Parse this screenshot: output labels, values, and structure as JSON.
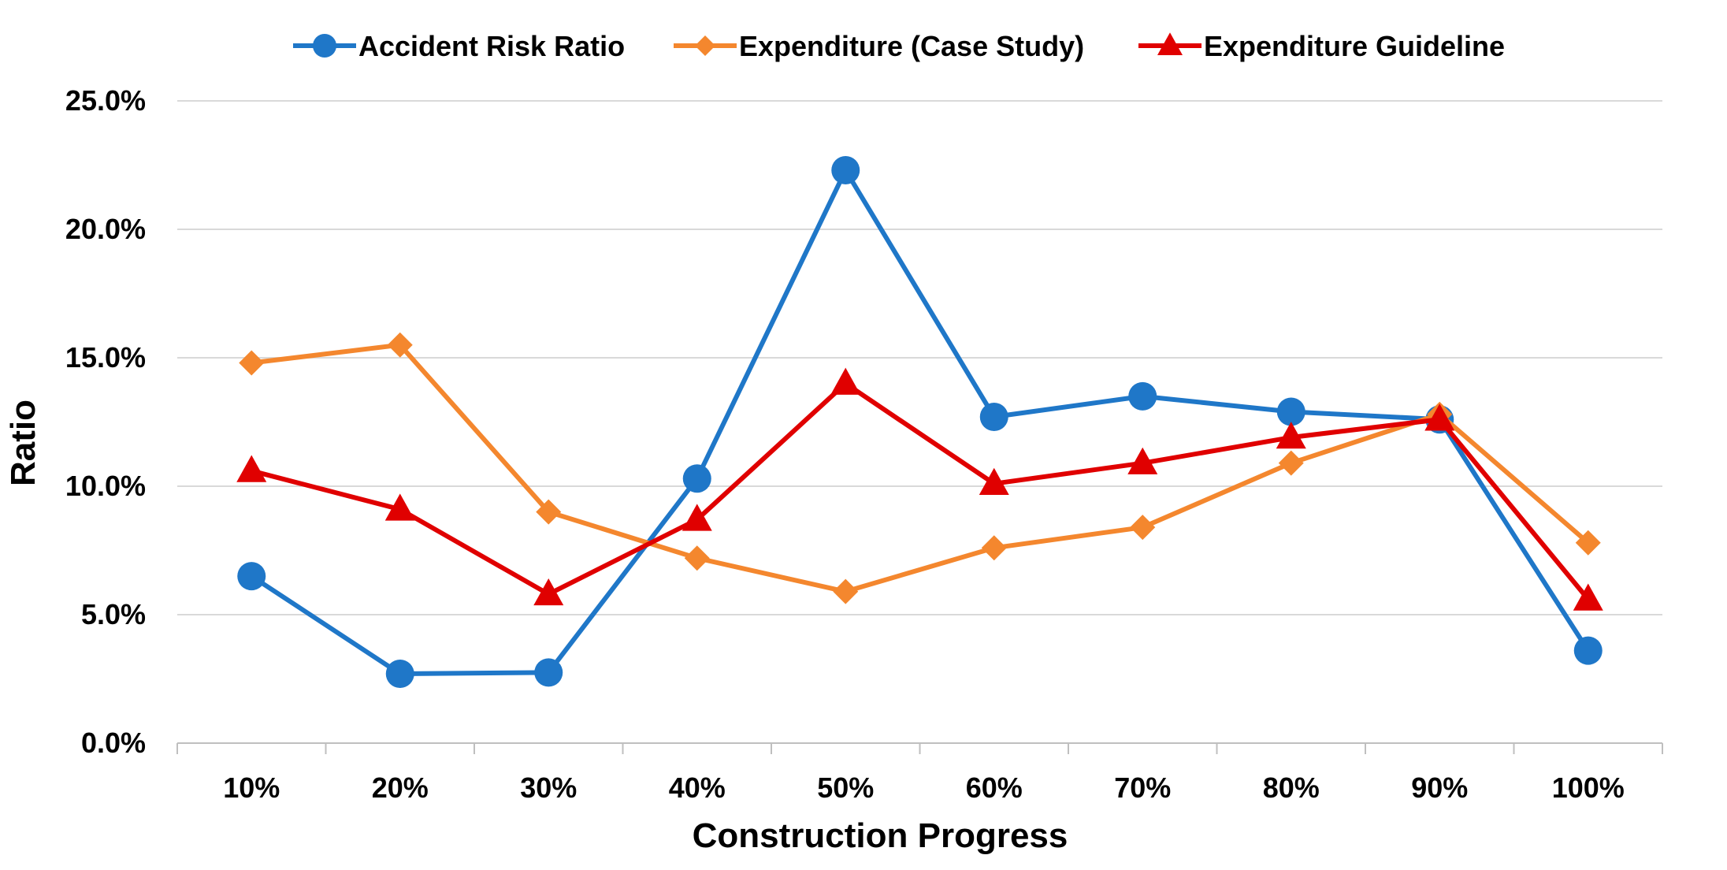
{
  "chart_data": {
    "type": "line",
    "title": "",
    "xlabel": "Construction Progress",
    "ylabel": "Ratio",
    "categories": [
      "10%",
      "20%",
      "30%",
      "40%",
      "50%",
      "60%",
      "70%",
      "80%",
      "90%",
      "100%"
    ],
    "ylim": [
      0,
      25
    ],
    "yticks": [
      0,
      5,
      10,
      15,
      20,
      25
    ],
    "ytick_labels": [
      "0.0%",
      "5.0%",
      "10.0%",
      "15.0%",
      "20.0%",
      "25.0%"
    ],
    "grid": true,
    "legend_position": "top",
    "series": [
      {
        "name": "Accident Risk Ratio",
        "color": "#1F77C8",
        "marker": "circle",
        "values": [
          6.5,
          2.7,
          2.75,
          10.3,
          22.3,
          12.7,
          13.5,
          12.9,
          12.6,
          3.6
        ]
      },
      {
        "name": "Expenditure (Case Study)",
        "color": "#F4872E",
        "marker": "diamond",
        "values": [
          14.8,
          15.5,
          9.0,
          7.2,
          5.9,
          7.6,
          8.4,
          10.9,
          12.8,
          7.8
        ]
      },
      {
        "name": "Expenditure Guideline",
        "color": "#E00000",
        "marker": "triangle",
        "values": [
          10.6,
          9.1,
          5.8,
          8.7,
          14.0,
          10.1,
          10.9,
          11.9,
          12.6,
          5.6
        ]
      }
    ]
  }
}
